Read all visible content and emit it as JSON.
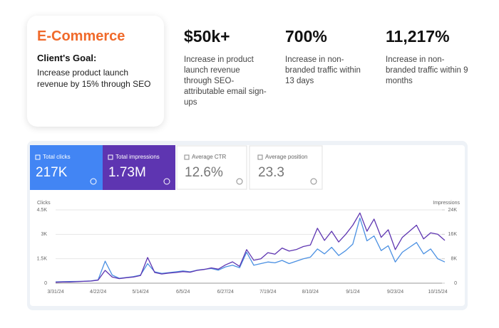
{
  "card": {
    "title": "E-Commerce",
    "goal_label": "Client's Goal:",
    "goal": "Increase product launch revenue by 15% through SEO"
  },
  "stats": [
    {
      "value": "$50k+",
      "desc": "Increase in product launch revenue through SEO-attributable email sign-ups"
    },
    {
      "value": "700%",
      "desc": "Increase in non-branded traffic within 13 days"
    },
    {
      "value": "11,217%",
      "desc": "Increase in non-branded traffic within 9 months"
    }
  ],
  "metrics": [
    {
      "label": "Average CTR",
      "value": "12.6%"
    },
    {
      "label": "Average position",
      "value": "23.3"
    }
  ],
  "chart_data": {
    "type": "line",
    "y_label": "Clicks",
    "y2_label": "Impressions",
    "categories": [
      "3/31/24",
      null,
      null,
      null,
      null,
      null,
      "4/22/24",
      null,
      null,
      null,
      null,
      null,
      "5/14/24",
      null,
      null,
      null,
      null,
      null,
      "6/5/24",
      null,
      null,
      null,
      null,
      null,
      "6/27/24",
      null,
      null,
      null,
      null,
      null,
      "7/19/24",
      null,
      null,
      null,
      null,
      null,
      "8/10/24",
      null,
      null,
      null,
      null,
      null,
      "9/1/24",
      null,
      null,
      null,
      null,
      null,
      "9/23/24",
      null,
      null,
      null,
      null,
      null,
      "10/15/24",
      null
    ],
    "ylim": [
      0,
      4500
    ],
    "yticks": [
      0,
      {
        "value": 1500,
        "label": "1.5K"
      },
      {
        "value": 3000,
        "label": "3K"
      },
      {
        "value": 4500,
        "label": "4.5K"
      }
    ],
    "y2lim": [
      0,
      24000
    ],
    "y2ticks": [
      0,
      {
        "value": 8000,
        "label": "8K"
      },
      {
        "value": 16000,
        "label": "16K"
      },
      {
        "value": 24000,
        "label": "24K"
      }
    ],
    "grid": true,
    "series": [
      {
        "name": "Total clicks",
        "total": "217K",
        "color": "#4a90e2",
        "values": [
          80,
          90,
          100,
          110,
          120,
          140,
          200,
          1350,
          500,
          300,
          350,
          400,
          500,
          1200,
          700,
          600,
          650,
          700,
          750,
          700,
          800,
          850,
          900,
          800,
          1000,
          1100,
          950,
          1900,
          1100,
          1200,
          1300,
          1250,
          1400,
          1200,
          1350,
          1500,
          1600,
          2100,
          1800,
          2200,
          1700,
          2000,
          2400,
          4000,
          2600,
          2900,
          2000,
          2300,
          1300,
          1900,
          2200,
          2500,
          1800,
          2100,
          1500,
          1300
        ]
      },
      {
        "name": "Total impressions",
        "total": "1.73M",
        "color": "#5e35b1",
        "axis": "y2",
        "values": [
          300,
          400,
          400,
          500,
          600,
          700,
          1000,
          4200,
          2000,
          1500,
          1800,
          2000,
          2500,
          8400,
          3500,
          3000,
          3300,
          3500,
          3800,
          3600,
          4200,
          4500,
          5000,
          4600,
          6000,
          7000,
          5500,
          11000,
          7500,
          8000,
          10000,
          9500,
          11500,
          10500,
          11000,
          12000,
          12500,
          18000,
          14000,
          17000,
          13500,
          16000,
          19000,
          23000,
          17000,
          21000,
          15000,
          17500,
          11000,
          15000,
          17000,
          19000,
          14500,
          16500,
          16000,
          14000
        ]
      }
    ]
  }
}
